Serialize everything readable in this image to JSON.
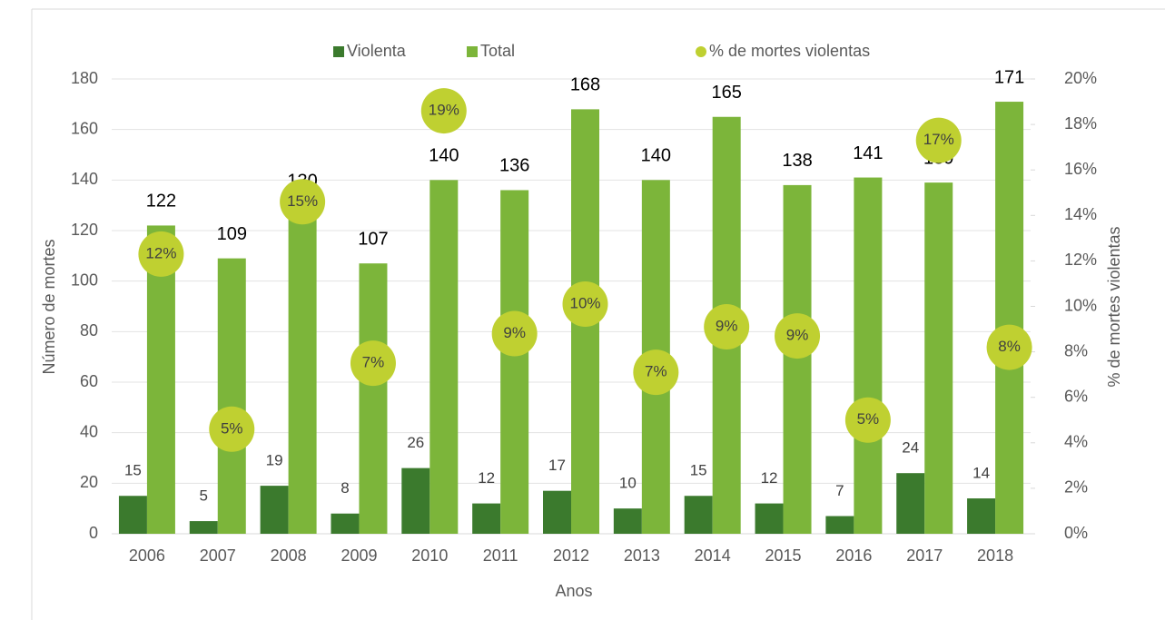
{
  "chart_data": {
    "type": "bar",
    "categories": [
      "2006",
      "2007",
      "2008",
      "2009",
      "2010",
      "2011",
      "2012",
      "2013",
      "2014",
      "2015",
      "2016",
      "2017",
      "2018"
    ],
    "series": [
      {
        "name": "Violenta",
        "color": "#3b7a2d",
        "values": [
          15,
          5,
          19,
          8,
          26,
          12,
          17,
          10,
          15,
          12,
          7,
          24,
          14
        ]
      },
      {
        "name": "Total",
        "color": "#7cb53a",
        "values": [
          122,
          109,
          130,
          107,
          140,
          136,
          168,
          140,
          165,
          138,
          141,
          139,
          171
        ]
      },
      {
        "name": "% de mortes violentas",
        "type": "scatter",
        "axis": "y2",
        "color": "#bfd031",
        "values": [
          12.3,
          4.6,
          14.6,
          7.5,
          18.6,
          8.8,
          10.1,
          7.1,
          9.1,
          8.7,
          5.0,
          17.3,
          8.2
        ],
        "value_labels": [
          "12%",
          "5%",
          "15%",
          "7%",
          "19%",
          "9%",
          "10%",
          "7%",
          "9%",
          "9%",
          "5%",
          "17%",
          "8%"
        ]
      }
    ],
    "xlabel": "Anos",
    "ylabel": "Número de mortes",
    "y2label": "% de mortes violentas",
    "ylim": [
      0,
      180
    ],
    "yticks": [
      0,
      20,
      40,
      60,
      80,
      100,
      120,
      140,
      160,
      180
    ],
    "y2lim": [
      0,
      20
    ],
    "y2ticks": [
      {
        "value": 0,
        "label": "0%"
      },
      {
        "value": 2,
        "label": "2%"
      },
      {
        "value": 4,
        "label": "4%"
      },
      {
        "value": 6,
        "label": "6%"
      },
      {
        "value": 8,
        "label": "8%"
      },
      {
        "value": 10,
        "label": "10%"
      },
      {
        "value": 12,
        "label": "12%"
      },
      {
        "value": 14,
        "label": "14%"
      },
      {
        "value": 16,
        "label": "16%"
      },
      {
        "value": 18,
        "label": "18%"
      },
      {
        "value": 20,
        "label": "20%"
      }
    ],
    "grid": true,
    "legend": "top"
  }
}
